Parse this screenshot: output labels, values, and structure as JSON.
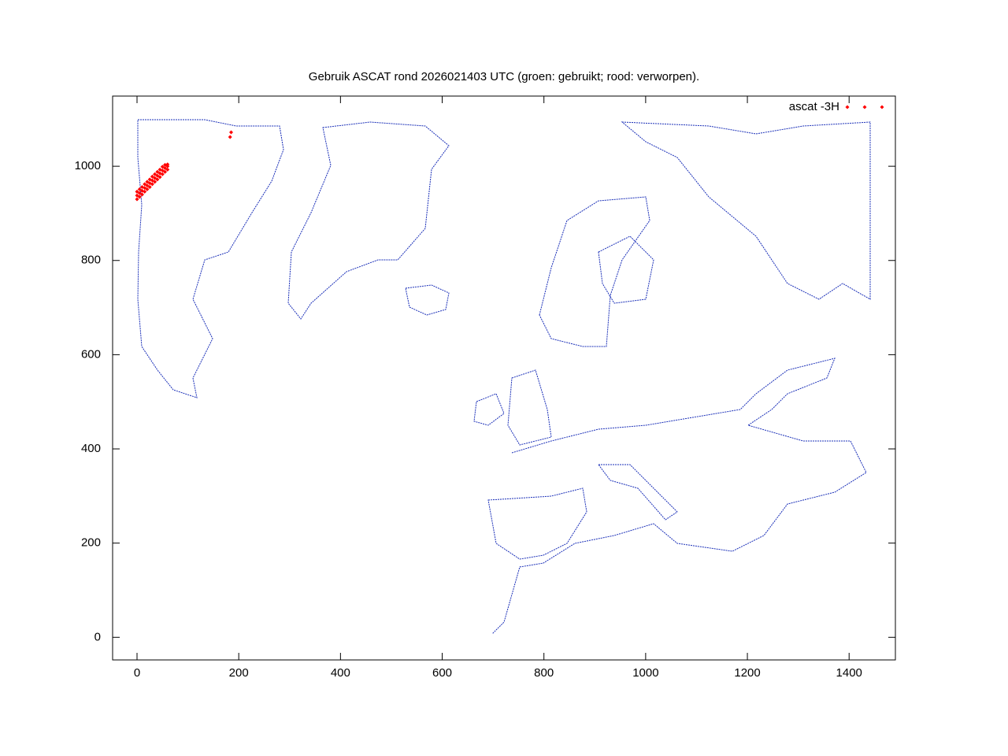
{
  "chart_data": {
    "type": "scatter",
    "title": "Gebruik ASCAT rond 2026021403 UTC (groen: gebruikt; rood: verworpen).",
    "xlim": [
      -48,
      1491
    ],
    "ylim": [
      -48,
      1149
    ],
    "xticks": [
      0,
      200,
      400,
      600,
      800,
      1000,
      1200,
      1400
    ],
    "yticks": [
      0,
      200,
      400,
      600,
      800,
      1000
    ],
    "legend": "top-right",
    "series": [
      {
        "name": "ascat -3H",
        "color": "#ff0000",
        "x": [
          0,
          0,
          0,
          5,
          5,
          5,
          10,
          10,
          10,
          15,
          15,
          15,
          20,
          20,
          20,
          25,
          25,
          25,
          30,
          30,
          30,
          35,
          35,
          35,
          40,
          40,
          40,
          45,
          45,
          45,
          50,
          50,
          50,
          55,
          55,
          55,
          60,
          60,
          60,
          183,
          185
        ],
        "y": [
          930,
          938,
          946,
          935,
          943,
          951,
          940,
          948,
          956,
          946,
          954,
          962,
          951,
          959,
          967,
          956,
          964,
          972,
          962,
          970,
          978,
          967,
          975,
          983,
          972,
          980,
          988,
          977,
          985,
          993,
          983,
          991,
          999,
          988,
          996,
          1003,
          993,
          1000,
          1004,
          1062,
          1072
        ]
      }
    ]
  }
}
